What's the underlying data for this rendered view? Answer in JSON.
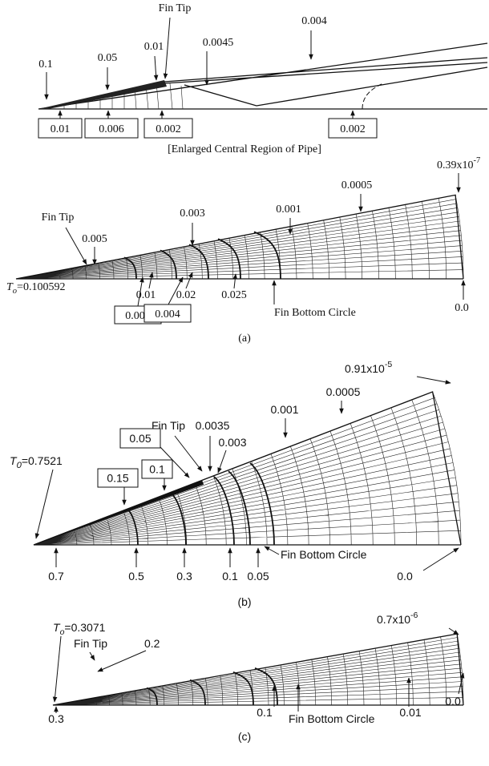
{
  "enlarged": {
    "labels": [
      "Fin Tip",
      "0.1",
      "0.05",
      "0.01",
      "0.0045",
      "0.004"
    ],
    "boxed_labels": [
      "0.01",
      "0.006",
      "0.002",
      "0.002"
    ],
    "caption": "[Enlarged Central Region of Pipe]"
  },
  "panel_a": {
    "labels": [
      {
        "base": "0.39x10",
        "exponent": "-7"
      },
      "0.0005",
      "0.001",
      "0.003",
      "Fin Tip",
      "0.005",
      "0.01",
      "0.02",
      "0.025",
      "Fin Bottom Circle",
      "0.0"
    ],
    "t0": {
      "symbol": "T",
      "subscript": "o",
      "value": "=0.100592"
    },
    "boxed_labels": [
      "0.002",
      "0.004"
    ],
    "caption": "(a)"
  },
  "panel_b": {
    "labels": [
      {
        "base": "0.91x10",
        "exponent": "-5"
      },
      "0.0005",
      "0.001",
      "Fin Tip",
      "0.0035",
      "0.003",
      "0.7",
      "0.5",
      "0.3",
      "0.1",
      "0.05",
      "Fin Bottom Circle",
      "0.0"
    ],
    "t0": {
      "symbol": "T",
      "subscript": "0",
      "value": "=0.7521"
    },
    "boxed_labels": [
      "0.05",
      "0.15",
      "0.1"
    ],
    "caption": "(b)"
  },
  "panel_c": {
    "labels": [
      {
        "base": "0.7x10",
        "exponent": "-6"
      },
      "Fin Tip",
      "0.2",
      "0.3",
      "0.1",
      "Fin Bottom Circle",
      "0.01",
      "0.0"
    ],
    "t0": {
      "symbol": "T",
      "subscript": "o",
      "value": "=0.3071"
    },
    "caption": "(c)"
  }
}
